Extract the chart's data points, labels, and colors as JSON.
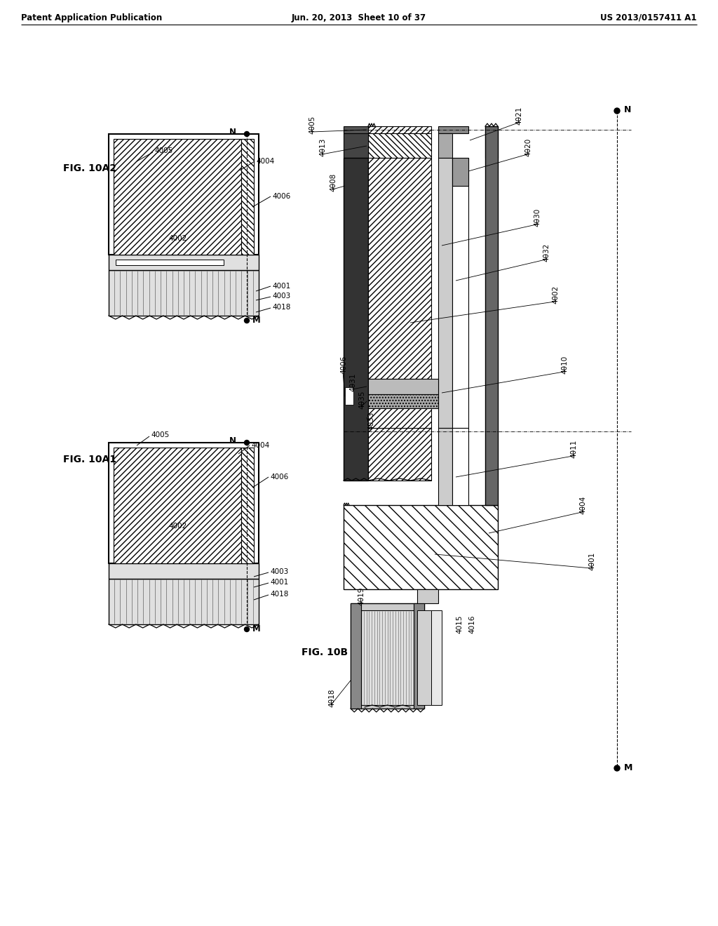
{
  "header_left": "Patent Application Publication",
  "header_mid": "Jun. 20, 2013  Sheet 10 of 37",
  "header_right": "US 2013/0157411 A1",
  "fig_10A1_label": "FIG. 10A1",
  "fig_10A2_label": "FIG. 10A2",
  "fig_10B_label": "FIG. 10B",
  "bg_color": "#ffffff"
}
